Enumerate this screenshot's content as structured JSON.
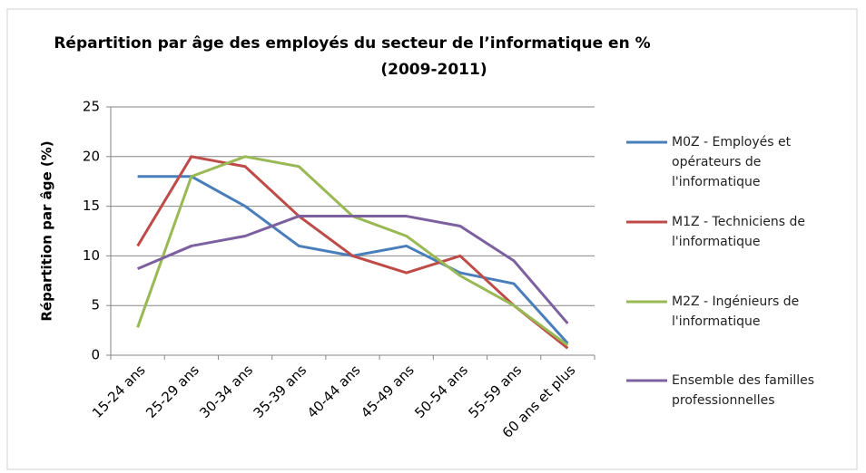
{
  "chart_data": {
    "type": "line",
    "title": "Répartition  par âge des employés du secteur de l’informatique en %",
    "subtitle": "(2009-2011)",
    "y_label": "Répartition par âge (%)",
    "categories": [
      "15-24 ans",
      "25-29 ans",
      "30-34 ans",
      "35-39 ans",
      "40-44 ans",
      "45-49 ans",
      "50-54 ans",
      "55-59 ans",
      "60 ans et plus"
    ],
    "series": [
      {
        "name": "M0Z - Employés et opérateurs de l'informatique",
        "color": "#4a7ebb",
        "values": [
          18,
          18,
          15,
          11,
          10,
          11,
          8.3,
          7.2,
          1.2
        ]
      },
      {
        "name": "M1Z - Techniciens de l'informatique",
        "color": "#be4b48",
        "values": [
          11,
          20,
          19,
          14,
          10,
          8.3,
          10,
          5,
          0.7
        ]
      },
      {
        "name": "M2Z - Ingénieurs de l'informatique",
        "color": "#98b954",
        "values": [
          2.8,
          18,
          20,
          19,
          14,
          12,
          8,
          5,
          1
        ]
      },
      {
        "name": "Ensemble des familles professionnelles",
        "color": "#7d60a0",
        "values": [
          8.7,
          11,
          12,
          14,
          14,
          14,
          13,
          9.5,
          3.2
        ]
      }
    ],
    "ylim": [
      0,
      25
    ],
    "yticks": [
      0,
      5,
      10,
      15,
      20,
      25
    ],
    "grid": true,
    "legend": "right"
  }
}
